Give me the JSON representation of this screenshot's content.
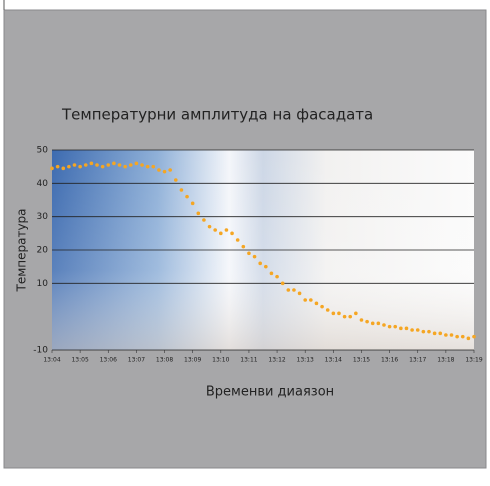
{
  "chart_data": {
    "type": "scatter",
    "title": "Температурни амплитуда на фасадата",
    "x_label": "Временви диаязон",
    "y_label": "Температура",
    "color": "#f5a623",
    "grid": true,
    "xlim": [
      4,
      19
    ],
    "xticks": [
      {
        "value": 4,
        "label": "13:04"
      },
      {
        "value": 5,
        "label": "13:05"
      },
      {
        "value": 6,
        "label": "13:06"
      },
      {
        "value": 7,
        "label": "13:07"
      },
      {
        "value": 8,
        "label": "13:08"
      },
      {
        "value": 9,
        "label": "13:09"
      },
      {
        "value": 10,
        "label": "13:10"
      },
      {
        "value": 11,
        "label": "13:11"
      },
      {
        "value": 12,
        "label": "13:12"
      },
      {
        "value": 13,
        "label": "13:13"
      },
      {
        "value": 14,
        "label": "13:14"
      },
      {
        "value": 15,
        "label": "13:15"
      },
      {
        "value": 16,
        "label": "13:16"
      },
      {
        "value": 17,
        "label": "13:17"
      },
      {
        "value": 18,
        "label": "13:18"
      },
      {
        "value": 19,
        "label": "13:19"
      }
    ],
    "ylim": [
      -10,
      50
    ],
    "yticks": [
      50,
      40,
      30,
      20,
      10,
      -10
    ],
    "x": [
      4.0,
      4.2,
      4.4,
      4.6,
      4.8,
      5.0,
      5.2,
      5.4,
      5.6,
      5.8,
      6.0,
      6.2,
      6.4,
      6.6,
      6.8,
      7.0,
      7.2,
      7.4,
      7.6,
      7.8,
      8.0,
      8.2,
      8.4,
      8.6,
      8.8,
      9.0,
      9.2,
      9.4,
      9.6,
      9.8,
      10.0,
      10.2,
      10.4,
      10.6,
      10.8,
      11.0,
      11.2,
      11.4,
      11.6,
      11.8,
      12.0,
      12.2,
      12.4,
      12.6,
      12.8,
      13.0,
      13.2,
      13.4,
      13.6,
      13.8,
      14.0,
      14.2,
      14.4,
      14.6,
      14.8,
      15.0,
      15.2,
      15.4,
      15.6,
      15.8,
      16.0,
      16.2,
      16.4,
      16.6,
      16.8,
      17.0,
      17.2,
      17.4,
      17.6,
      17.8,
      18.0,
      18.2,
      18.4,
      18.6,
      18.8,
      19.0
    ],
    "values": [
      44.5,
      45,
      44.5,
      45,
      45.5,
      45,
      45.5,
      46,
      45.5,
      45,
      45.5,
      46,
      45.5,
      45,
      45.5,
      46,
      45.5,
      45,
      45,
      44,
      43.5,
      44,
      41,
      38,
      36,
      34,
      31,
      29,
      27,
      26,
      25,
      26,
      25,
      23,
      21,
      19,
      18,
      16,
      15,
      13,
      12,
      10,
      8,
      8,
      7,
      5,
      5,
      4,
      3,
      2,
      1,
      1,
      0,
      0,
      1,
      -1,
      -1.5,
      -2,
      -2,
      -2.5,
      -3,
      -3,
      -3.5,
      -3.5,
      -4,
      -4,
      -4.5,
      -4.5,
      -5,
      -5,
      -5.5,
      -5.5,
      -6,
      -6,
      -6.5,
      -6
    ]
  }
}
